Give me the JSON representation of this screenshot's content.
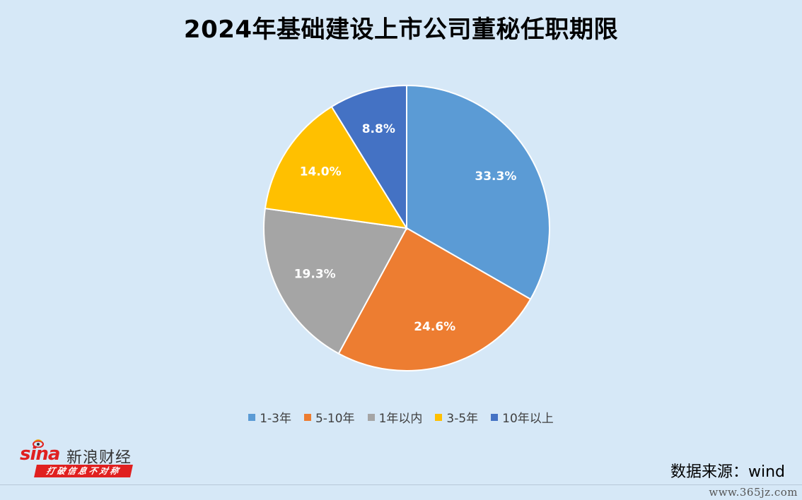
{
  "title": "2024年基础建设上市公司董秘任职期限",
  "chart_data": {
    "type": "pie",
    "title": "2024年基础建设上市公司董秘任职期限",
    "slices": [
      {
        "label": "1-3年",
        "value": 33.3,
        "display": "33.3%",
        "color": "#5b9bd5"
      },
      {
        "label": "5-10年",
        "value": 24.6,
        "display": "24.6%",
        "color": "#ed7d31"
      },
      {
        "label": "1年以内",
        "value": 19.3,
        "display": "19.3%",
        "color": "#a5a5a5"
      },
      {
        "label": "3-5年",
        "value": 14.0,
        "display": "14.0%",
        "color": "#ffc000"
      },
      {
        "label": "10年以上",
        "value": 8.8,
        "display": "8.8%",
        "color": "#4472c4"
      }
    ],
    "legend_position": "bottom"
  },
  "logo": {
    "mark": "sina",
    "name": "新浪财经",
    "slogan": "打破信息不对称"
  },
  "source": "数据来源：wind",
  "watermark": "www.365jz.com",
  "colors": {
    "background": "#d6e8f7",
    "brand": "#e02020"
  }
}
